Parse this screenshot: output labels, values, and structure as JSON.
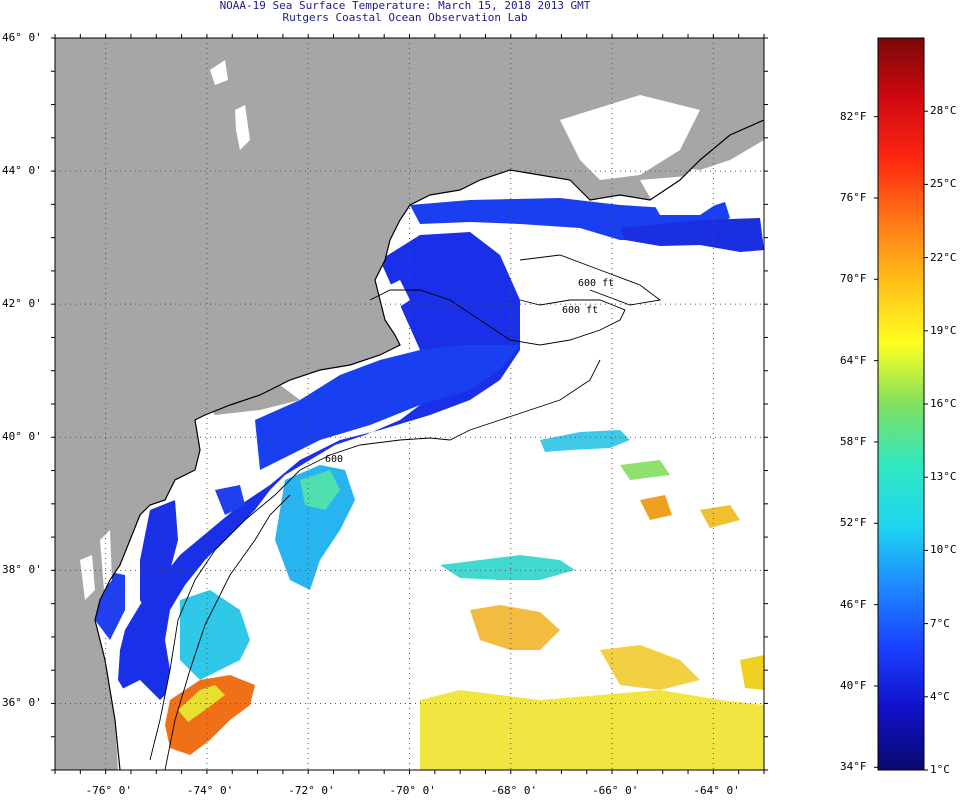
{
  "title": {
    "line1": "NOAA-19 Sea Surface Temperature:  March 15, 2018 2013 GMT",
    "line2": "Rutgers Coastal Ocean Observation Lab"
  },
  "colors": {
    "land": "#a6a6a6",
    "ocean_nodata": "#ffffff",
    "grid": "#555555"
  },
  "map": {
    "lat_range": [
      35,
      46
    ],
    "lon_range": [
      -77,
      -63
    ],
    "lat_ticks": [
      {
        "value": 46,
        "label": "46° 0'"
      },
      {
        "value": 44,
        "label": "44° 0'"
      },
      {
        "value": 42,
        "label": "42° 0'"
      },
      {
        "value": 40,
        "label": "40° 0'"
      },
      {
        "value": 38,
        "label": "38° 0'"
      },
      {
        "value": 36,
        "label": "36° 0'"
      }
    ],
    "lon_ticks": [
      {
        "value": -76,
        "label": "-76° 0'"
      },
      {
        "value": -74,
        "label": "-74° 0'"
      },
      {
        "value": -72,
        "label": "-72° 0'"
      },
      {
        "value": -70,
        "label": "-70° 0'"
      },
      {
        "value": -68,
        "label": "-68° 0'"
      },
      {
        "value": -66,
        "label": "-66° 0'"
      },
      {
        "value": -64,
        "label": "-64° 0'"
      }
    ],
    "contour_labels": [
      "600 ft",
      "600 ft",
      "600"
    ]
  },
  "colorbar": {
    "range_c": [
      1,
      31
    ],
    "fahrenheit_labels": [
      "82°F",
      "76°F",
      "70°F",
      "64°F",
      "58°F",
      "52°F",
      "46°F",
      "40°F",
      "34°F"
    ],
    "celsius_labels": [
      "28°C",
      "25°C",
      "22°C",
      "19°C",
      "16°C",
      "13°C",
      "10°C",
      "7°C",
      "4°C",
      "1°C"
    ],
    "stops": [
      "#0a0a70",
      "#1010c8",
      "#1a40ff",
      "#1e88ff",
      "#1ed6f0",
      "#30e8c0",
      "#80e060",
      "#ffff20",
      "#ffc018",
      "#ff7818",
      "#ff2810",
      "#d00810",
      "#7a0808"
    ]
  }
}
